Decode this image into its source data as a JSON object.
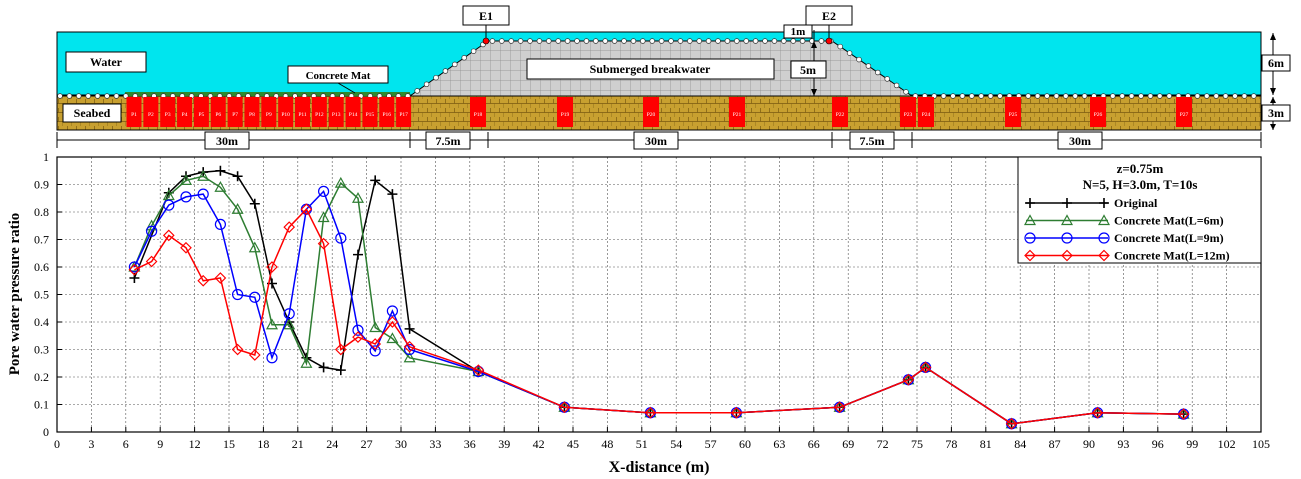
{
  "diagram": {
    "labels": {
      "water": "Water",
      "seabed": "Seabed",
      "concrete_mat": "Concrete Mat",
      "breakwater": "Submerged breakwater",
      "e1": "E1",
      "e2": "E2",
      "dim_1m": "1m",
      "dim_5m": "5m",
      "dim_6m": "6m",
      "dim_3m": "3m"
    },
    "dimensions": [
      "30m",
      "7.5m",
      "30m",
      "7.5m",
      "30m"
    ],
    "sensors_left": [
      "P1",
      "P2",
      "P3",
      "P4",
      "P5",
      "P6",
      "P7",
      "P8",
      "P9",
      "P10",
      "P11",
      "P12",
      "P13",
      "P14",
      "P15",
      "P16",
      "P17"
    ],
    "sensors_right": [
      "P18",
      "P19",
      "P20",
      "P21",
      "P22",
      "P23",
      "P24",
      "P25",
      "P26",
      "P27"
    ],
    "colors": {
      "water": "#00e5ee",
      "seabed": "#c8a030",
      "sensor": "#ff0000",
      "breakwater": "#c8c8c8",
      "mat": "#2e8b2e"
    }
  },
  "chart_data": {
    "type": "line",
    "xlabel": "X-distance (m)",
    "ylabel": "Pore water pressure ratio",
    "xlim": [
      0,
      105
    ],
    "ylim": [
      0,
      1
    ],
    "xticks": [
      "0",
      "3",
      "6",
      "9",
      "12",
      "15",
      "18",
      "21",
      "24",
      "27",
      "30",
      "33",
      "36",
      "39",
      "42",
      "45",
      "48",
      "51",
      "54",
      "57",
      "60",
      "63",
      "66",
      "69",
      "72",
      "75",
      "78",
      "81",
      "84",
      "87",
      "90",
      "93",
      "96",
      "99",
      "102",
      "105"
    ],
    "yticks": [
      "0",
      "0.1",
      "0.2",
      "0.3",
      "0.4",
      "0.5",
      "0.6",
      "0.7",
      "0.8",
      "0.9",
      "1"
    ],
    "grid": true,
    "legend": {
      "position": "top-right",
      "title_lines": [
        "z=0.75m",
        "N=5, H=3.0m, T=10s"
      ]
    },
    "series": [
      {
        "name": "Original",
        "color": "#000000",
        "marker": "plus",
        "points": [
          [
            6.75,
            0.56
          ],
          [
            9.75,
            0.87
          ],
          [
            11.25,
            0.93
          ],
          [
            12.75,
            0.945
          ],
          [
            14.25,
            0.95
          ],
          [
            15.75,
            0.93
          ],
          [
            17.25,
            0.83
          ],
          [
            18.75,
            0.54
          ],
          [
            20.25,
            0.4
          ],
          [
            21.75,
            0.27
          ],
          [
            23.25,
            0.235
          ],
          [
            24.75,
            0.225
          ],
          [
            26.25,
            0.645
          ],
          [
            27.75,
            0.915
          ],
          [
            29.25,
            0.865
          ],
          [
            30.75,
            0.375
          ],
          [
            36.75,
            0.22
          ],
          [
            44.25,
            0.09
          ],
          [
            51.75,
            0.07
          ],
          [
            59.25,
            0.07
          ],
          [
            68.25,
            0.09
          ],
          [
            74.25,
            0.19
          ],
          [
            75.75,
            0.235
          ],
          [
            83.25,
            0.03
          ],
          [
            90.75,
            0.07
          ],
          [
            98.25,
            0.065
          ]
        ]
      },
      {
        "name": "Concrete Mat(L=6m)",
        "color": "#2e7d32",
        "marker": "triangle",
        "points": [
          [
            6.75,
            0.6
          ],
          [
            8.25,
            0.75
          ],
          [
            9.75,
            0.86
          ],
          [
            11.25,
            0.915
          ],
          [
            12.75,
            0.93
          ],
          [
            14.25,
            0.89
          ],
          [
            15.75,
            0.81
          ],
          [
            17.25,
            0.67
          ],
          [
            18.75,
            0.39
          ],
          [
            20.25,
            0.39
          ],
          [
            21.75,
            0.25
          ],
          [
            23.25,
            0.78
          ],
          [
            24.75,
            0.905
          ],
          [
            26.25,
            0.85
          ],
          [
            27.75,
            0.38
          ],
          [
            29.25,
            0.34
          ],
          [
            30.75,
            0.27
          ],
          [
            36.75,
            0.22
          ],
          [
            44.25,
            0.09
          ],
          [
            51.75,
            0.07
          ],
          [
            59.25,
            0.07
          ],
          [
            68.25,
            0.09
          ],
          [
            74.25,
            0.19
          ],
          [
            75.75,
            0.235
          ],
          [
            83.25,
            0.03
          ],
          [
            90.75,
            0.07
          ],
          [
            98.25,
            0.065
          ]
        ]
      },
      {
        "name": "Concrete Mat(L=9m)",
        "color": "#0000ff",
        "marker": "circle",
        "points": [
          [
            6.75,
            0.6
          ],
          [
            8.25,
            0.73
          ],
          [
            9.75,
            0.825
          ],
          [
            11.25,
            0.855
          ],
          [
            12.75,
            0.865
          ],
          [
            14.25,
            0.755
          ],
          [
            15.75,
            0.5
          ],
          [
            17.25,
            0.49
          ],
          [
            18.75,
            0.27
          ],
          [
            20.25,
            0.43
          ],
          [
            21.75,
            0.81
          ],
          [
            23.25,
            0.875
          ],
          [
            24.75,
            0.705
          ],
          [
            26.25,
            0.37
          ],
          [
            27.75,
            0.295
          ],
          [
            29.25,
            0.44
          ],
          [
            30.75,
            0.3
          ],
          [
            36.75,
            0.22
          ],
          [
            44.25,
            0.09
          ],
          [
            51.75,
            0.07
          ],
          [
            59.25,
            0.07
          ],
          [
            68.25,
            0.09
          ],
          [
            74.25,
            0.19
          ],
          [
            75.75,
            0.235
          ],
          [
            83.25,
            0.03
          ],
          [
            90.75,
            0.07
          ],
          [
            98.25,
            0.065
          ]
        ]
      },
      {
        "name": "Concrete Mat(L=12m)",
        "color": "#ff0000",
        "marker": "diamond",
        "points": [
          [
            6.75,
            0.59
          ],
          [
            8.25,
            0.62
          ],
          [
            9.75,
            0.715
          ],
          [
            11.25,
            0.67
          ],
          [
            12.75,
            0.55
          ],
          [
            14.25,
            0.56
          ],
          [
            15.75,
            0.3
          ],
          [
            17.25,
            0.28
          ],
          [
            18.75,
            0.6
          ],
          [
            20.25,
            0.745
          ],
          [
            21.75,
            0.81
          ],
          [
            23.25,
            0.685
          ],
          [
            24.75,
            0.3
          ],
          [
            26.25,
            0.345
          ],
          [
            27.75,
            0.32
          ],
          [
            29.25,
            0.4
          ],
          [
            30.75,
            0.31
          ],
          [
            36.75,
            0.225
          ],
          [
            44.25,
            0.09
          ],
          [
            51.75,
            0.07
          ],
          [
            59.25,
            0.07
          ],
          [
            68.25,
            0.09
          ],
          [
            74.25,
            0.19
          ],
          [
            75.75,
            0.235
          ],
          [
            83.25,
            0.03
          ],
          [
            90.75,
            0.07
          ],
          [
            98.25,
            0.065
          ]
        ]
      }
    ]
  }
}
